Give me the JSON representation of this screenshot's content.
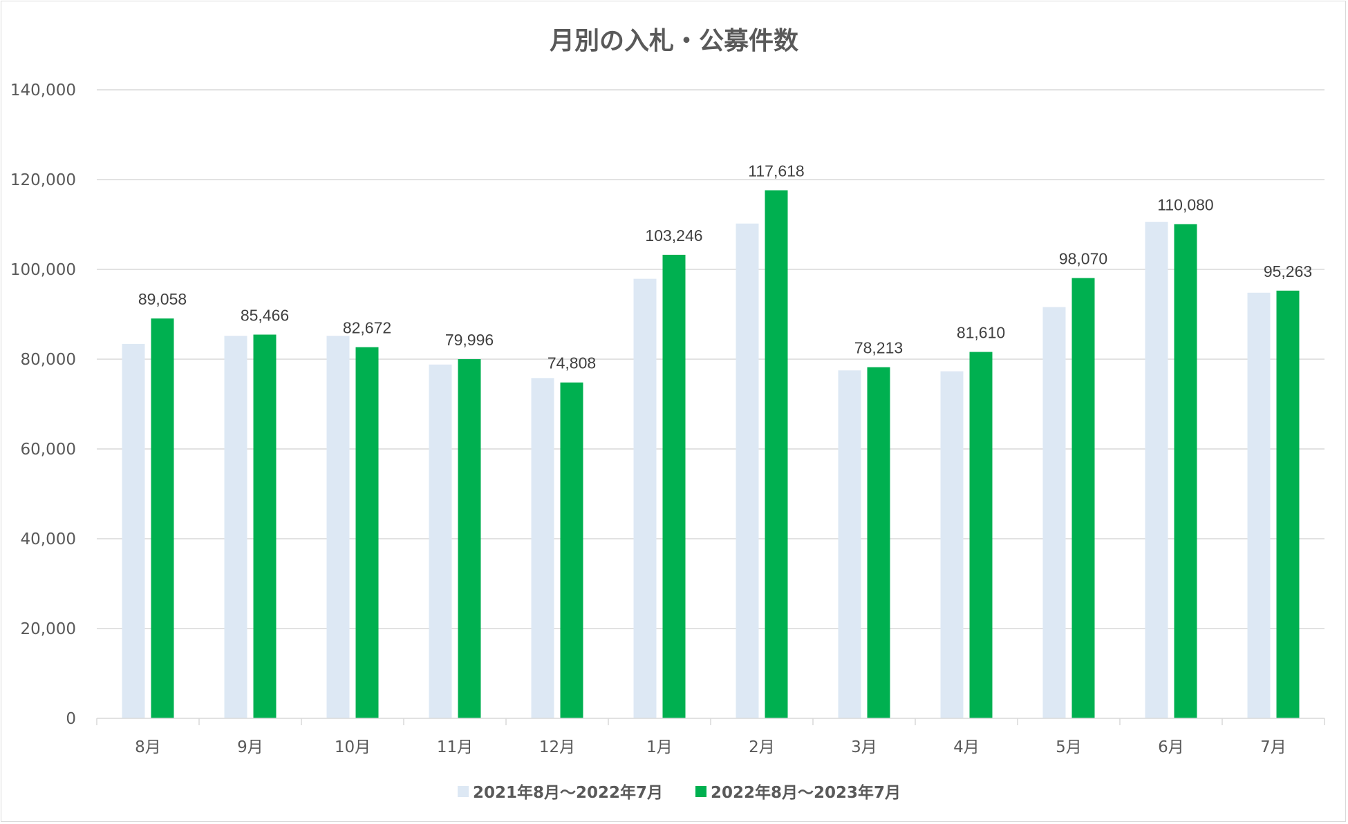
{
  "chart_data": {
    "type": "bar",
    "title": "月別の入札・公募件数",
    "categories": [
      "8月",
      "9月",
      "10月",
      "11月",
      "12月",
      "1月",
      "2月",
      "3月",
      "4月",
      "5月",
      "6月",
      "7月"
    ],
    "series": [
      {
        "name": "2021年8月～2022年7月",
        "color": "#dde8f4",
        "values": [
          83400,
          85200,
          85200,
          78800,
          75800,
          97900,
          110200,
          77500,
          77300,
          91600,
          110600,
          94800
        ],
        "labels": []
      },
      {
        "name": "2022年8月～2023年7月",
        "color": "#00b050",
        "values": [
          89058,
          85466,
          82672,
          79996,
          74808,
          103246,
          117618,
          78213,
          81610,
          98070,
          110080,
          95263
        ],
        "labels": [
          "89,058",
          "85,466",
          "82,672",
          "79,996",
          "74,808",
          "103,246",
          "117,618",
          "78,213",
          "81,610",
          "98,070",
          "110,080",
          "95,263"
        ]
      }
    ],
    "ylim": [
      0,
      140000
    ],
    "yticks": [
      "0",
      "20,000",
      "40,000",
      "60,000",
      "80,000",
      "100,000",
      "120,000",
      "140,000"
    ],
    "ytick_values": [
      0,
      20000,
      40000,
      60000,
      80000,
      100000,
      120000,
      140000
    ],
    "grid": true,
    "legend_position": "bottom"
  }
}
